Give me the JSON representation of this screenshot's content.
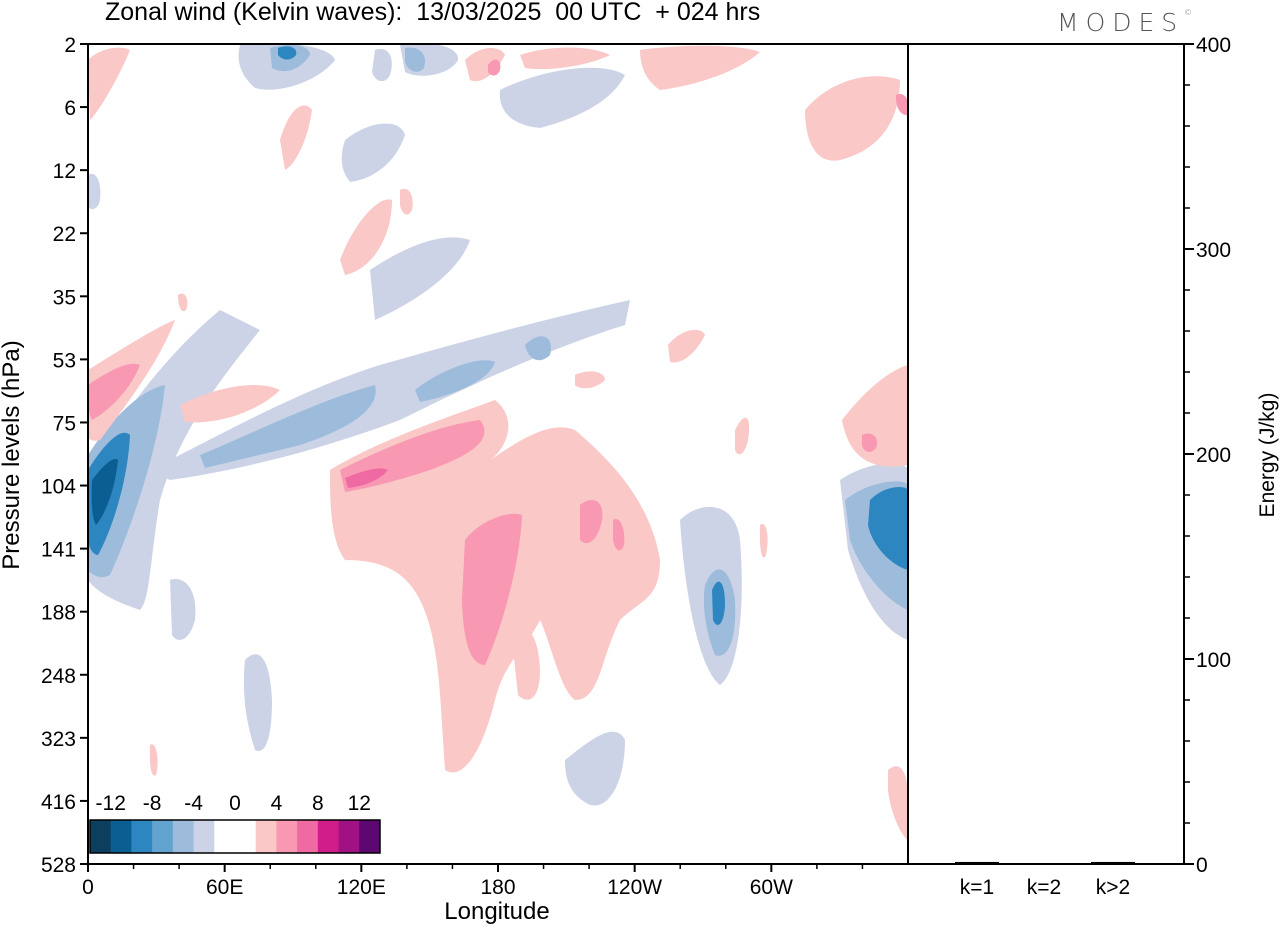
{
  "chart_data": [
    {
      "type": "heatmap",
      "title": "Zonal wind (Kelvin waves):  13/03/2025  00 UTC  + 024 hrs",
      "xlabel": "Longitude",
      "ylabel": "Pressure levels (hPa)",
      "x_ticks": [
        "0",
        "60E",
        "120E",
        "180",
        "120W",
        "60W"
      ],
      "y_ticks": [
        "2",
        "6",
        "12",
        "22",
        "35",
        "53",
        "75",
        "104",
        "141",
        "188",
        "248",
        "323",
        "416",
        "528"
      ],
      "colorbar": {
        "labels": [
          "-12",
          "-8",
          "-4",
          "0",
          "4",
          "8",
          "12"
        ],
        "colors": [
          "#0c3e5e",
          "#0a5e92",
          "#2e86c0",
          "#63a3cf",
          "#9dbcdc",
          "#cdd3e6",
          "#ffffff",
          "#ffffff",
          "#f9c8c7",
          "#f898b2",
          "#ef6aa3",
          "#d01d8a",
          "#a01283",
          "#5c0870"
        ]
      }
    },
    {
      "type": "bar",
      "ylabel": "Energy (J/kg)",
      "categories": [
        "k=1",
        "k=2",
        "k>2"
      ],
      "values": [
        1,
        0,
        1
      ],
      "ylim": [
        0,
        400
      ],
      "y_ticks": [
        "0",
        "100",
        "200",
        "300",
        "400"
      ]
    }
  ],
  "brand": {
    "name": "MODES",
    "mark": "©"
  }
}
